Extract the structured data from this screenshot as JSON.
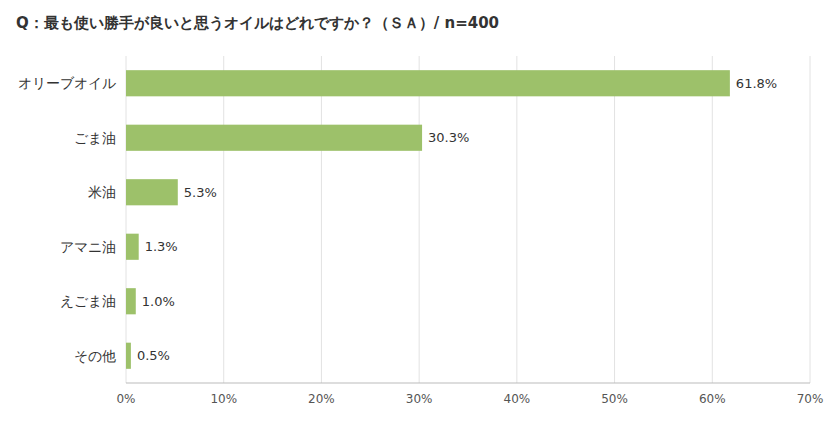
{
  "chart_data": {
    "type": "bar",
    "orientation": "horizontal",
    "title": "Q：最も使い勝手が良いと思うオイルはどれですか？（ＳＡ）/ n=400",
    "categories": [
      "その他",
      "えごま油",
      "アマニ油",
      "米油",
      "ごま油",
      "オリーブオイル"
    ],
    "values": [
      0.5,
      1.0,
      1.3,
      5.3,
      30.3,
      61.8
    ],
    "value_labels": [
      "0.5%",
      "1.0%",
      "1.3%",
      "5.3%",
      "30.3%",
      "61.8%"
    ],
    "data_labels": true,
    "color": "#9dc16a",
    "xlim": [
      0,
      70
    ],
    "xticks": [
      {
        "value": 0,
        "label": "0%"
      },
      {
        "value": 10,
        "label": "10%"
      },
      {
        "value": 20,
        "label": "20%"
      },
      {
        "value": 30,
        "label": "30%"
      },
      {
        "value": 40,
        "label": "40%"
      },
      {
        "value": 50,
        "label": "50%"
      },
      {
        "value": 60,
        "label": "60%"
      },
      {
        "value": 70,
        "label": "70%"
      }
    ],
    "grid": true
  }
}
